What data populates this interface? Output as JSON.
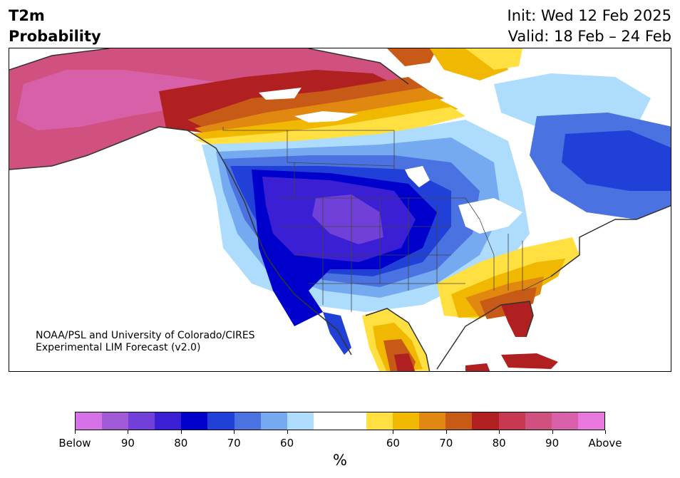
{
  "header": {
    "title_line1": "T2m",
    "title_line2": "Probability",
    "init_line": "Init: Wed 12 Feb 2025",
    "valid_line": "Valid: 18 Feb – 24 Feb"
  },
  "map": {
    "region": "North America",
    "credit_line1": "NOAA/PSL and University of Colorado/CIRES",
    "credit_line2": "Experimental LIM Forecast (v2.0)",
    "ocean_color": "#ffffff",
    "border_color": "#333333"
  },
  "colorbar": {
    "unit_label": "%",
    "colors": [
      "#d672e8",
      "#a05ad8",
      "#7040d8",
      "#3a1fd4",
      "#0000cc",
      "#2040d8",
      "#4a72e0",
      "#76aaf0",
      "#aedcfc",
      "#ffffff",
      "#ffffff",
      "#ffe040",
      "#f0b800",
      "#e08810",
      "#c85a18",
      "#b02020",
      "#c83850",
      "#d05080",
      "#d860a8",
      "#e878e0"
    ],
    "tick_labels": [
      "Below",
      "90",
      "80",
      "70",
      "60",
      "60",
      "70",
      "80",
      "90",
      "Above"
    ]
  }
}
